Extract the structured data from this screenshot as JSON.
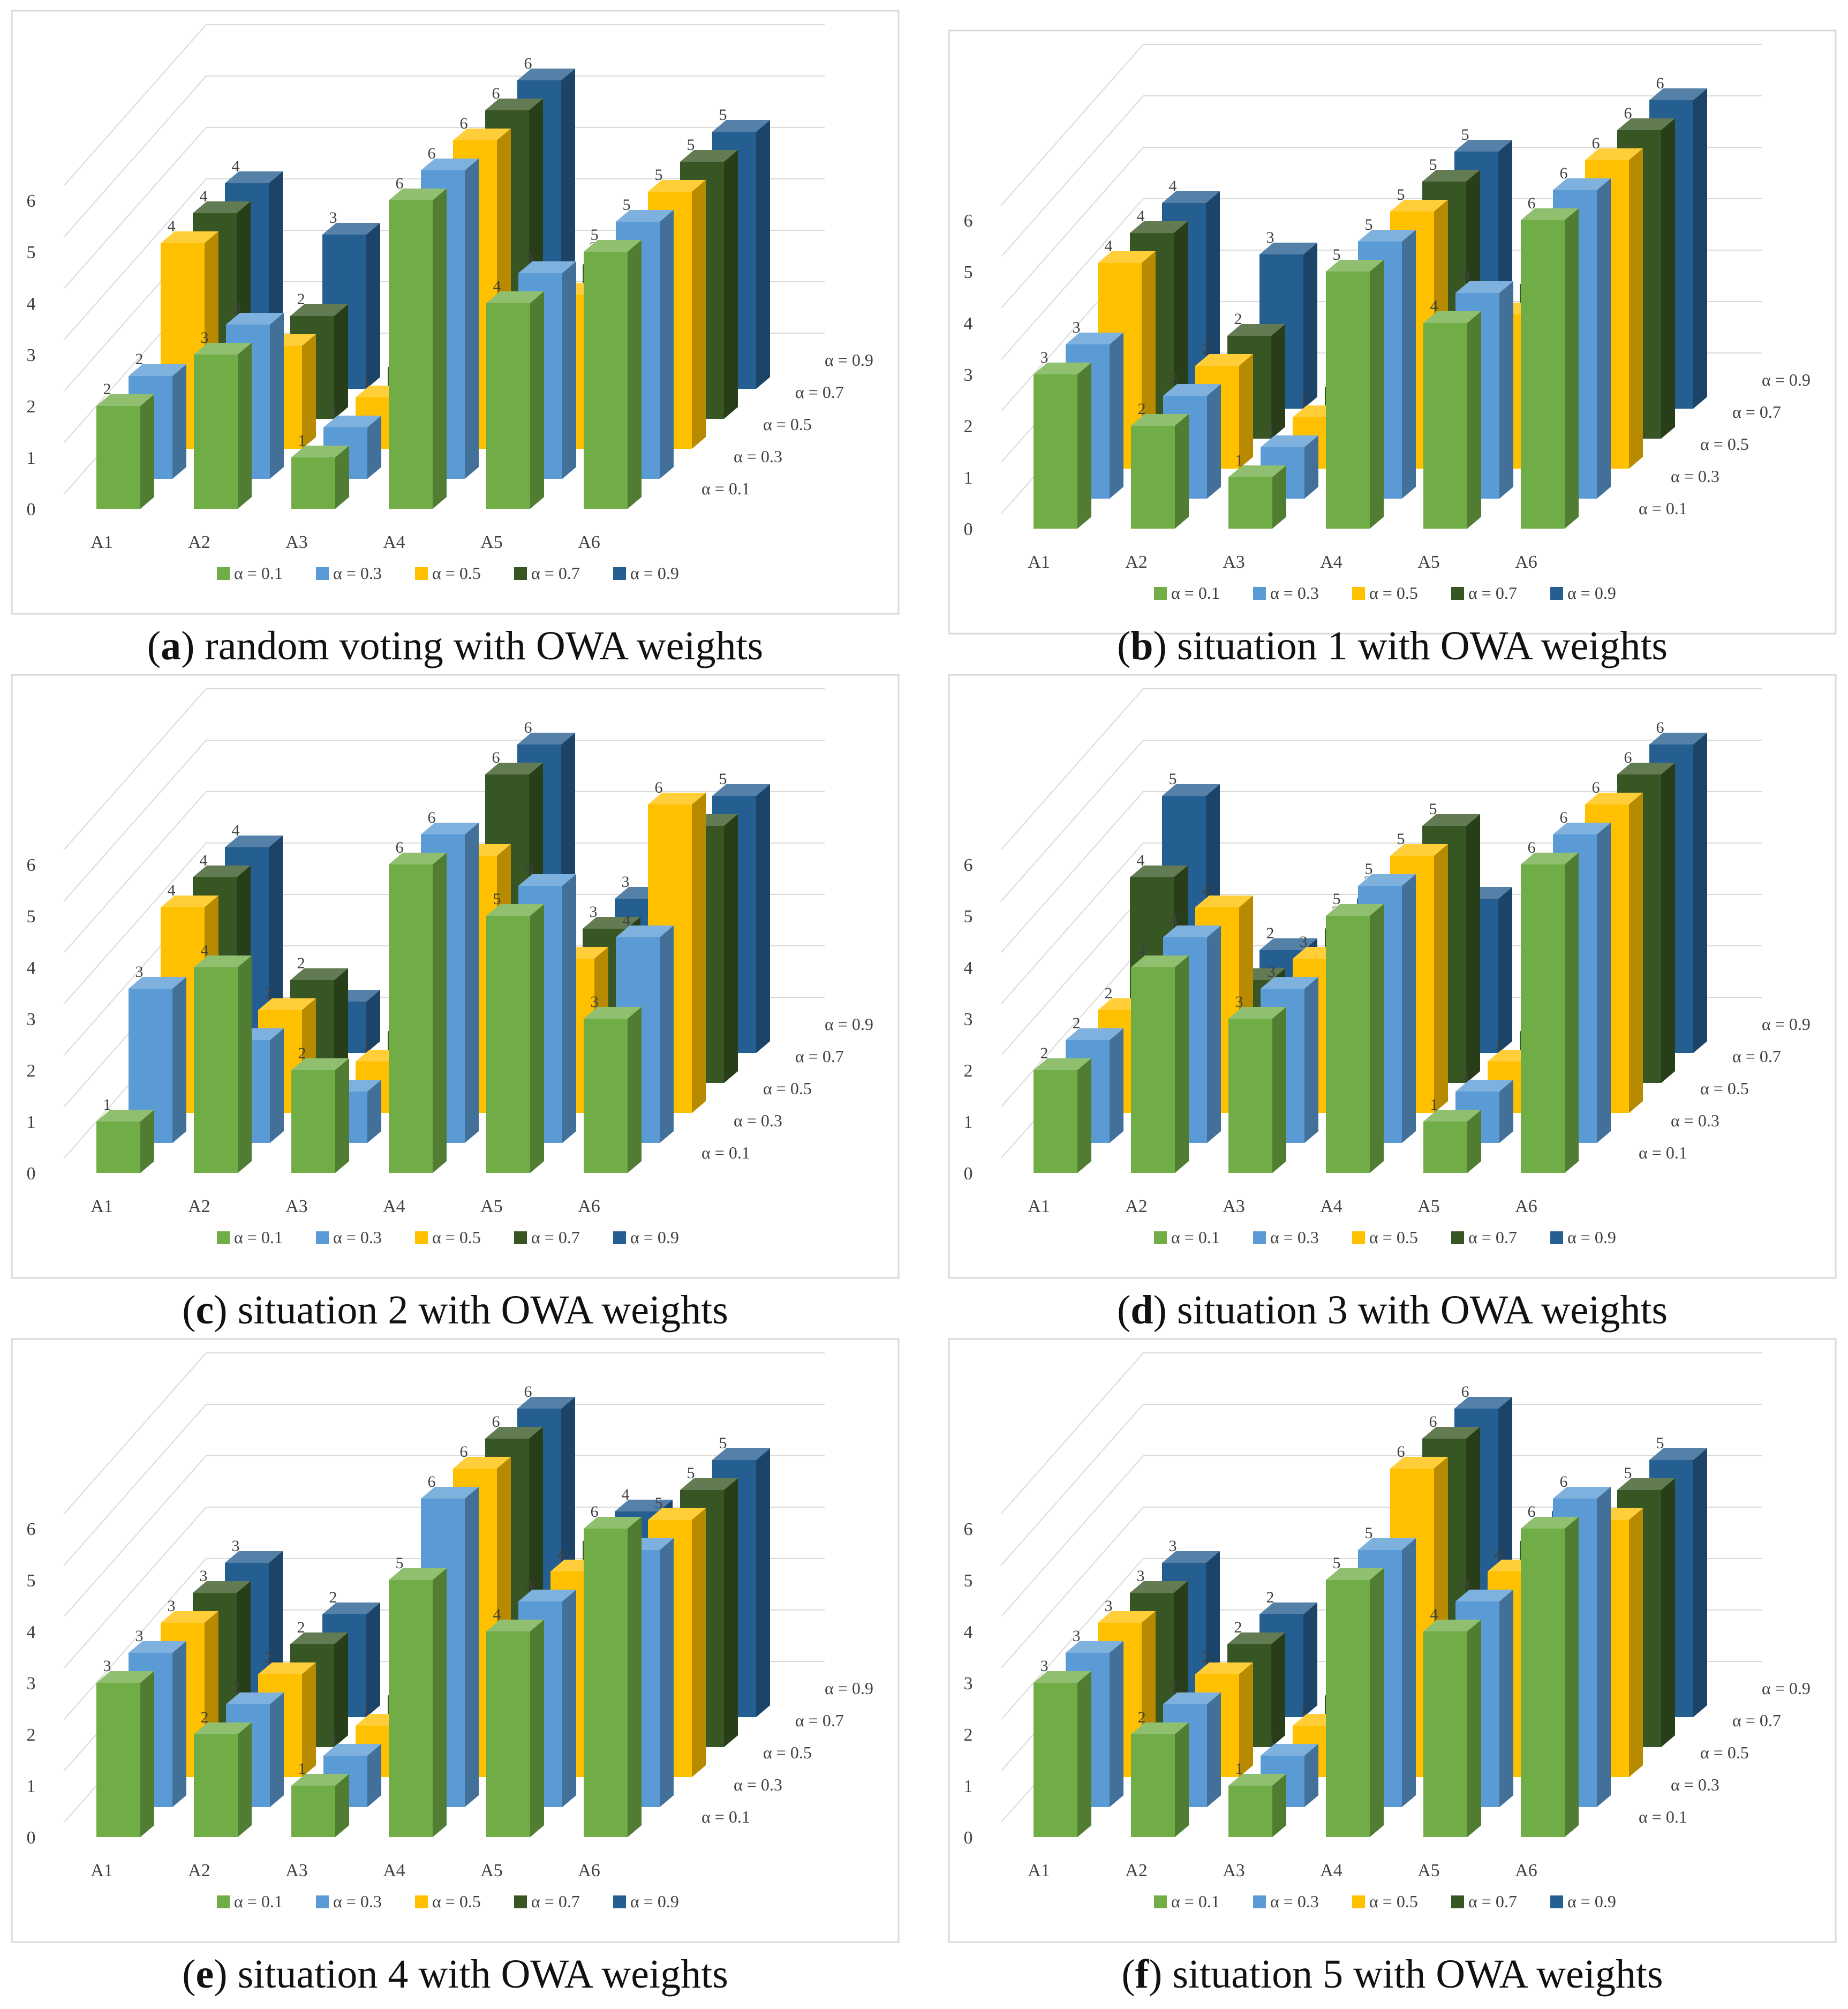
{
  "figure": {
    "colors": {
      "a01": "#70ad47",
      "a03": "#5b9bd5",
      "a05": "#ffc000",
      "a07": "#375623",
      "a09": "#255e91"
    },
    "panels": [
      {
        "key": "a",
        "letter": "a",
        "caption": ") random voting with OWA weights"
      },
      {
        "key": "b",
        "letter": "b",
        "caption": ") situation 1 with OWA weights"
      },
      {
        "key": "c",
        "letter": "c",
        "caption": ") situation 2 with OWA weights"
      },
      {
        "key": "d",
        "letter": "d",
        "caption": ") situation 3 with OWA weights"
      },
      {
        "key": "e",
        "letter": "e",
        "caption": ") situation 4 with OWA weights"
      },
      {
        "key": "f",
        "letter": "f",
        "caption": ") situation 5 with OWA weights"
      }
    ]
  },
  "chart_data": [
    {
      "type": "bar3d",
      "title": "random voting with OWA weights",
      "categories": [
        "A1",
        "A2",
        "A3",
        "A4",
        "A5",
        "A6"
      ],
      "yticks": [
        "0",
        "1",
        "2",
        "3",
        "4",
        "5",
        "6"
      ],
      "ylim": [
        0,
        6
      ],
      "series": [
        {
          "name": "α = 0.1",
          "values": [
            2,
            3,
            1,
            6,
            4,
            5
          ]
        },
        {
          "name": "α = 0.3",
          "values": [
            2,
            3,
            1,
            6,
            4,
            5
          ]
        },
        {
          "name": "α = 0.5",
          "values": [
            4,
            2,
            1,
            6,
            3,
            5
          ]
        },
        {
          "name": "α = 0.7",
          "values": [
            4,
            2,
            1,
            6,
            3,
            5
          ]
        },
        {
          "name": "α = 0.9",
          "values": [
            4,
            3,
            1,
            6,
            2,
            5
          ]
        }
      ],
      "labels": [
        [
          "2",
          "3",
          "1",
          "6",
          "4",
          "5"
        ],
        [
          "2",
          "3",
          "1",
          "6",
          "4",
          "5"
        ],
        [
          "4",
          "2",
          "1",
          "6",
          "3",
          "5"
        ],
        [
          "4",
          "2",
          "1",
          "6",
          "3",
          "5"
        ],
        [
          "4",
          "3",
          "1",
          "6",
          "2",
          "5"
        ]
      ]
    },
    {
      "type": "bar3d",
      "title": "situation 1 with OWA weights",
      "categories": [
        "A1",
        "A2",
        "A3",
        "A4",
        "A5",
        "A6"
      ],
      "yticks": [
        "0",
        "1",
        "2",
        "3",
        "4",
        "5",
        "6"
      ],
      "ylim": [
        0,
        6
      ],
      "series": [
        {
          "name": "α = 0.1",
          "values": [
            3,
            2,
            1,
            5,
            4,
            6
          ]
        },
        {
          "name": "α = 0.3",
          "values": [
            3,
            2,
            1,
            5,
            4,
            6
          ]
        },
        {
          "name": "α = 0.5",
          "values": [
            4,
            2,
            1,
            5,
            3,
            6
          ]
        },
        {
          "name": "α = 0.7",
          "values": [
            4,
            2,
            1,
            5,
            3,
            6
          ]
        },
        {
          "name": "α = 0.9",
          "values": [
            4,
            3,
            1,
            5,
            2,
            6
          ]
        }
      ],
      "labels": [
        [
          "3",
          "2",
          "1",
          "5",
          "4",
          "6"
        ],
        [
          "3",
          "2",
          "1",
          "5",
          "4",
          "6"
        ],
        [
          "4",
          "2",
          "1",
          "5",
          "3",
          "6"
        ],
        [
          "4",
          "2",
          "1",
          "5",
          "3",
          "6"
        ],
        [
          "4",
          "3",
          "1",
          "5",
          "2",
          "6"
        ]
      ]
    },
    {
      "type": "bar3d",
      "title": "situation 2 with OWA weights",
      "categories": [
        "A1",
        "A2",
        "A3",
        "A4",
        "A5",
        "A6"
      ],
      "yticks": [
        "0",
        "1",
        "2",
        "3",
        "4",
        "5",
        "6"
      ],
      "ylim": [
        0,
        6
      ],
      "series": [
        {
          "name": "α = 0.1",
          "values": [
            1,
            4,
            2,
            6,
            5,
            3
          ]
        },
        {
          "name": "α = 0.3",
          "values": [
            3,
            2,
            1,
            6,
            5,
            4
          ]
        },
        {
          "name": "α = 0.5",
          "values": [
            4,
            2,
            1,
            5,
            3,
            6
          ]
        },
        {
          "name": "α = 0.7",
          "values": [
            4,
            2,
            1,
            6,
            3,
            5
          ]
        },
        {
          "name": "α = 0.9",
          "values": [
            4,
            1,
            1,
            6,
            3,
            5
          ]
        }
      ],
      "labels": [
        [
          "1",
          "4",
          "2",
          "6",
          "5",
          "3"
        ],
        [
          "3",
          "2",
          "1",
          "6",
          "5",
          "4"
        ],
        [
          "4",
          "2",
          "1",
          "5",
          "3",
          "6"
        ],
        [
          "4",
          "2",
          "1",
          "6",
          "3",
          "5"
        ],
        [
          "4",
          "1",
          "1",
          "6",
          "3",
          "5"
        ]
      ]
    },
    {
      "type": "bar3d",
      "title": "situation 3 with OWA weights",
      "categories": [
        "A1",
        "A2",
        "A3",
        "A4",
        "A5",
        "A6"
      ],
      "yticks": [
        "0",
        "1",
        "2",
        "3",
        "4",
        "5",
        "6"
      ],
      "ylim": [
        0,
        6
      ],
      "series": [
        {
          "name": "α = 0.1",
          "values": [
            2,
            4,
            3,
            5,
            1,
            6
          ]
        },
        {
          "name": "α = 0.3",
          "values": [
            2,
            4,
            3,
            5,
            1,
            6
          ]
        },
        {
          "name": "α = 0.5",
          "values": [
            2,
            4,
            3,
            5,
            1,
            6
          ]
        },
        {
          "name": "α = 0.7",
          "values": [
            4,
            2,
            3,
            5,
            1,
            6
          ]
        },
        {
          "name": "α = 0.9",
          "values": [
            5,
            2,
            3,
            3,
            1,
            6
          ]
        }
      ],
      "labels": [
        [
          "2",
          "4",
          "3",
          "5",
          "1",
          "6"
        ],
        [
          "2",
          "4",
          "3",
          "5",
          "1",
          "6"
        ],
        [
          "2",
          "4",
          "3",
          "5",
          "1",
          "6"
        ],
        [
          "4",
          "2",
          "3",
          "5",
          "1",
          "6"
        ],
        [
          "5",
          "2",
          "3",
          "3",
          "1",
          "6"
        ]
      ]
    },
    {
      "type": "bar3d",
      "title": "situation 4 with OWA weights",
      "categories": [
        "A1",
        "A2",
        "A3",
        "A4",
        "A5",
        "A6"
      ],
      "yticks": [
        "0",
        "1",
        "2",
        "3",
        "4",
        "5",
        "6"
      ],
      "ylim": [
        0,
        6
      ],
      "series": [
        {
          "name": "α = 0.1",
          "values": [
            3,
            2,
            1,
            5,
            4,
            6
          ]
        },
        {
          "name": "α = 0.3",
          "values": [
            3,
            2,
            1,
            6,
            4,
            5
          ]
        },
        {
          "name": "α = 0.5",
          "values": [
            3,
            2,
            1,
            6,
            4,
            5
          ]
        },
        {
          "name": "α = 0.7",
          "values": [
            3,
            2,
            1,
            6,
            4,
            5
          ]
        },
        {
          "name": "α = 0.9",
          "values": [
            3,
            2,
            1,
            6,
            4,
            5
          ]
        }
      ],
      "labels": [
        [
          "3",
          "2",
          "1",
          "5",
          "4",
          "6"
        ],
        [
          "3",
          "2",
          "1",
          "6",
          "4",
          "5"
        ],
        [
          "3",
          "2",
          "1",
          "6",
          "4",
          "5"
        ],
        [
          "3",
          "2",
          "1",
          "6",
          "4",
          "5"
        ],
        [
          "3",
          "2",
          "1",
          "6",
          "4",
          "5"
        ]
      ]
    },
    {
      "type": "bar3d",
      "title": "situation 5 with OWA weights",
      "categories": [
        "A1",
        "A2",
        "A3",
        "A4",
        "A5",
        "A6"
      ],
      "yticks": [
        "0",
        "1",
        "2",
        "3",
        "4",
        "5",
        "6"
      ],
      "ylim": [
        0,
        6
      ],
      "series": [
        {
          "name": "α = 0.1",
          "values": [
            3,
            2,
            1,
            5,
            4,
            6
          ]
        },
        {
          "name": "α = 0.3",
          "values": [
            3,
            2,
            1,
            5,
            4,
            6
          ]
        },
        {
          "name": "α = 0.5",
          "values": [
            3,
            2,
            1,
            6,
            4,
            5
          ]
        },
        {
          "name": "α = 0.7",
          "values": [
            3,
            2,
            1,
            6,
            4,
            5
          ]
        },
        {
          "name": "α = 0.9",
          "values": [
            3,
            2,
            1,
            6,
            4,
            5
          ]
        }
      ],
      "labels": [
        [
          "3",
          "2",
          "1",
          "5",
          "4",
          "6"
        ],
        [
          "3",
          "2",
          "1",
          "5",
          "4",
          "6"
        ],
        [
          "3",
          "2",
          "1",
          "6",
          "4",
          "5"
        ],
        [
          "3",
          "2",
          "1",
          "6",
          "4",
          "5"
        ],
        [
          "3",
          "2",
          "1",
          "6",
          "4",
          "5"
        ]
      ]
    }
  ]
}
